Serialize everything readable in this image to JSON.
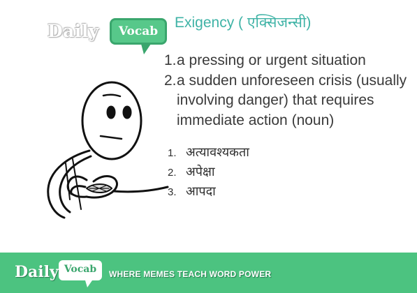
{
  "logo": {
    "daily": "Daily",
    "vocab": "Vocab"
  },
  "word": {
    "title": "Exigency ( एक्सिजन्सी)"
  },
  "definitions": [
    {
      "num": "1.",
      "text": "a pressing or urgent situation"
    },
    {
      "num": "2.",
      "text": "a sudden unforeseen crisis (usually involving danger) that requires immediate action (noun)"
    }
  ],
  "hindi_meanings": [
    {
      "num": "1.",
      "text": "अत्यावश्यकता"
    },
    {
      "num": "2.",
      "text": "अपेक्षा"
    },
    {
      "num": "3.",
      "text": "आपदा"
    }
  ],
  "footer": {
    "daily": "Daily",
    "vocab": "Vocab",
    "tagline": "WHERE MEMES TEACH WORD POWER",
    "background_color": "#4cc380"
  },
  "colors": {
    "accent": "#3fb3a6",
    "brand_green": "#57c88a"
  },
  "illustration": {
    "icon": "meme-face-icon"
  }
}
